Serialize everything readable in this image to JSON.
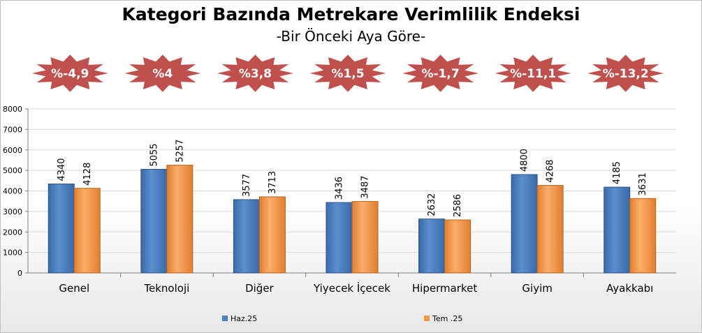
{
  "title": "Kategori Bazında Metrekare Verimlilik Endeksi",
  "subtitle": "-Bir Önceki Aya Göre-",
  "badges": [
    "%-4,9",
    "%4",
    "%3,8",
    "%1,5",
    "%-1,7",
    "%-11,1",
    "%-13,2"
  ],
  "colors": {
    "series1": "#4f81bd",
    "series2": "#f79646",
    "badge": "#c0504d",
    "grid": "#d9d9d9"
  },
  "chart_data": {
    "type": "bar",
    "categories": [
      "Genel",
      "Teknoloji",
      "Diğer",
      "Yiyecek İçecek",
      "Hipermarket",
      "Giyim",
      "Ayakkabı"
    ],
    "series": [
      {
        "name": "Haz.25",
        "values": [
          4340,
          5055,
          3577,
          3436,
          2632,
          4800,
          4185
        ]
      },
      {
        "name": "Tem .25",
        "values": [
          4128,
          5257,
          3713,
          3487,
          2586,
          4268,
          3631
        ]
      }
    ],
    "yticks": [
      "0",
      "1000",
      "2000",
      "3000",
      "4000",
      "5000",
      "6000",
      "7000",
      "8000"
    ],
    "ylim": [
      0,
      8000
    ],
    "grid": true,
    "legend": "bottom"
  }
}
